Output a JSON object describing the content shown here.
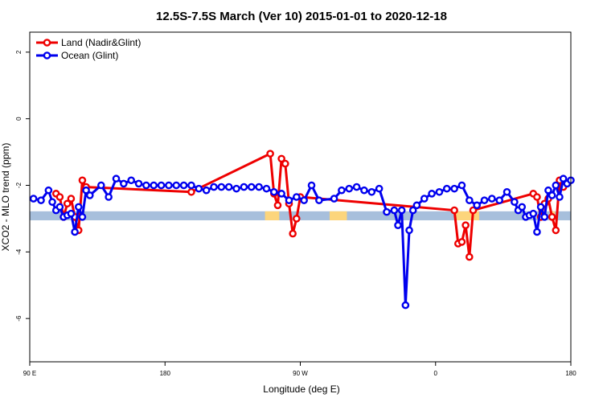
{
  "chart_data": {
    "type": "line",
    "title": "12.5S-7.5S March (Ver 10)   2015-01-01 to 2020-12-18",
    "xlabel": "Longitude (deg E)",
    "ylabel": "XCO2 - MLO trend (ppm)",
    "xlim": [
      90,
      450
    ],
    "ylim": [
      -7.3,
      2.6
    ],
    "x_ticks": [
      {
        "value": 90,
        "label": "90 E"
      },
      {
        "value": 180,
        "label": "180"
      },
      {
        "value": 270,
        "label": "90 W"
      },
      {
        "value": 360,
        "label": "0"
      },
      {
        "value": 450,
        "label": "180"
      }
    ],
    "y_ticks": [
      {
        "value": 2,
        "label": "2"
      },
      {
        "value": 0,
        "label": "0"
      },
      {
        "value": -2,
        "label": "-2"
      },
      {
        "value": -4,
        "label": "-4"
      },
      {
        "value": -6,
        "label": "-6"
      }
    ],
    "grid": false,
    "legend_position": "top-left",
    "surface_band": {
      "y_range": [
        -3.05,
        -2.78
      ],
      "ocean_color": "#a7bfdc",
      "land_color": "#fcd57c",
      "land_segments": [
        [
          246.5,
          256
        ],
        [
          289.5,
          301
        ],
        [
          373,
          389
        ],
        [
          436.5,
          439.5
        ]
      ]
    },
    "series": [
      {
        "name": "Land (Nadir&Glint)",
        "color": "#ee0000",
        "points": [
          [
            107.5,
            -2.25
          ],
          [
            110,
            -2.35
          ],
          [
            112.5,
            -2.95
          ],
          [
            115,
            -2.55
          ],
          [
            117.5,
            -2.4
          ],
          [
            120,
            -2.95
          ],
          [
            122.5,
            -3.35
          ],
          [
            125,
            -1.85
          ],
          [
            127.5,
            -2.05
          ],
          [
            197.5,
            -2.2
          ],
          [
            250,
            -1.05
          ],
          [
            252.5,
            -2.25
          ],
          [
            255,
            -2.6
          ],
          [
            257.5,
            -1.2
          ],
          [
            260,
            -1.35
          ],
          [
            262.5,
            -2.55
          ],
          [
            265,
            -3.45
          ],
          [
            267.5,
            -3.0
          ],
          [
            270,
            -2.35
          ],
          [
            372.5,
            -2.75
          ],
          [
            375,
            -3.75
          ],
          [
            377.5,
            -3.7
          ],
          [
            380,
            -3.2
          ],
          [
            382.5,
            -4.15
          ],
          [
            385,
            -2.75
          ],
          [
            425,
            -2.25
          ],
          [
            427.5,
            -2.35
          ],
          [
            430,
            -2.95
          ],
          [
            432.5,
            -2.55
          ],
          [
            435,
            -2.4
          ],
          [
            437.5,
            -2.95
          ],
          [
            440,
            -3.35
          ],
          [
            442.5,
            -1.85
          ],
          [
            445,
            -2.05
          ]
        ]
      },
      {
        "name": "Ocean (Glint)",
        "color": "#0000ee",
        "points": [
          [
            92.5,
            -2.4
          ],
          [
            97.5,
            -2.45
          ],
          [
            102.5,
            -2.15
          ],
          [
            105,
            -2.5
          ],
          [
            107.5,
            -2.75
          ],
          [
            110,
            -2.65
          ],
          [
            112.5,
            -2.95
          ],
          [
            115,
            -2.9
          ],
          [
            117.5,
            -2.85
          ],
          [
            120,
            -3.4
          ],
          [
            122.5,
            -2.65
          ],
          [
            125,
            -2.95
          ],
          [
            127.5,
            -2.15
          ],
          [
            130,
            -2.3
          ],
          [
            137.5,
            -2.0
          ],
          [
            142.5,
            -2.35
          ],
          [
            147.5,
            -1.8
          ],
          [
            152.5,
            -1.95
          ],
          [
            157.5,
            -1.85
          ],
          [
            162.5,
            -1.95
          ],
          [
            167.5,
            -2.0
          ],
          [
            172.5,
            -2.0
          ],
          [
            177.5,
            -2.0
          ],
          [
            182.5,
            -2.0
          ],
          [
            187.5,
            -2.0
          ],
          [
            192.5,
            -2.0
          ],
          [
            197.5,
            -2.0
          ],
          [
            202.5,
            -2.1
          ],
          [
            207.5,
            -2.15
          ],
          [
            212.5,
            -2.05
          ],
          [
            217.5,
            -2.05
          ],
          [
            222.5,
            -2.05
          ],
          [
            227.5,
            -2.1
          ],
          [
            232.5,
            -2.05
          ],
          [
            237.5,
            -2.05
          ],
          [
            242.5,
            -2.05
          ],
          [
            247.5,
            -2.1
          ],
          [
            252.5,
            -2.2
          ],
          [
            257.5,
            -2.25
          ],
          [
            262.5,
            -2.45
          ],
          [
            267.5,
            -2.35
          ],
          [
            272.5,
            -2.45
          ],
          [
            277.5,
            -2.0
          ],
          [
            282.5,
            -2.45
          ],
          [
            292.5,
            -2.4
          ],
          [
            297.5,
            -2.15
          ],
          [
            302.5,
            -2.1
          ],
          [
            307.5,
            -2.05
          ],
          [
            312.5,
            -2.15
          ],
          [
            317.5,
            -2.2
          ],
          [
            322.5,
            -2.1
          ],
          [
            327.5,
            -2.8
          ],
          [
            332.5,
            -2.75
          ],
          [
            335,
            -3.2
          ],
          [
            337.5,
            -2.75
          ],
          [
            340,
            -5.6
          ],
          [
            342.5,
            -3.35
          ],
          [
            345,
            -2.75
          ],
          [
            347.5,
            -2.6
          ],
          [
            352.5,
            -2.4
          ],
          [
            357.5,
            -2.25
          ],
          [
            362.5,
            -2.2
          ],
          [
            367.5,
            -2.1
          ],
          [
            372.5,
            -2.1
          ],
          [
            377.5,
            -2.0
          ],
          [
            382.5,
            -2.45
          ],
          [
            387.5,
            -2.6
          ],
          [
            392.5,
            -2.45
          ],
          [
            397.5,
            -2.4
          ],
          [
            402.5,
            -2.45
          ],
          [
            407.5,
            -2.2
          ],
          [
            412.5,
            -2.5
          ],
          [
            415,
            -2.75
          ],
          [
            417.5,
            -2.65
          ],
          [
            420,
            -2.95
          ],
          [
            422.5,
            -2.9
          ],
          [
            425,
            -2.85
          ],
          [
            427.5,
            -3.4
          ],
          [
            430,
            -2.65
          ],
          [
            432.5,
            -2.95
          ],
          [
            435,
            -2.15
          ],
          [
            437.5,
            -2.3
          ],
          [
            440,
            -2.0
          ],
          [
            442.5,
            -2.35
          ],
          [
            445,
            -1.8
          ],
          [
            447.5,
            -1.95
          ],
          [
            450,
            -1.85
          ]
        ]
      }
    ]
  }
}
